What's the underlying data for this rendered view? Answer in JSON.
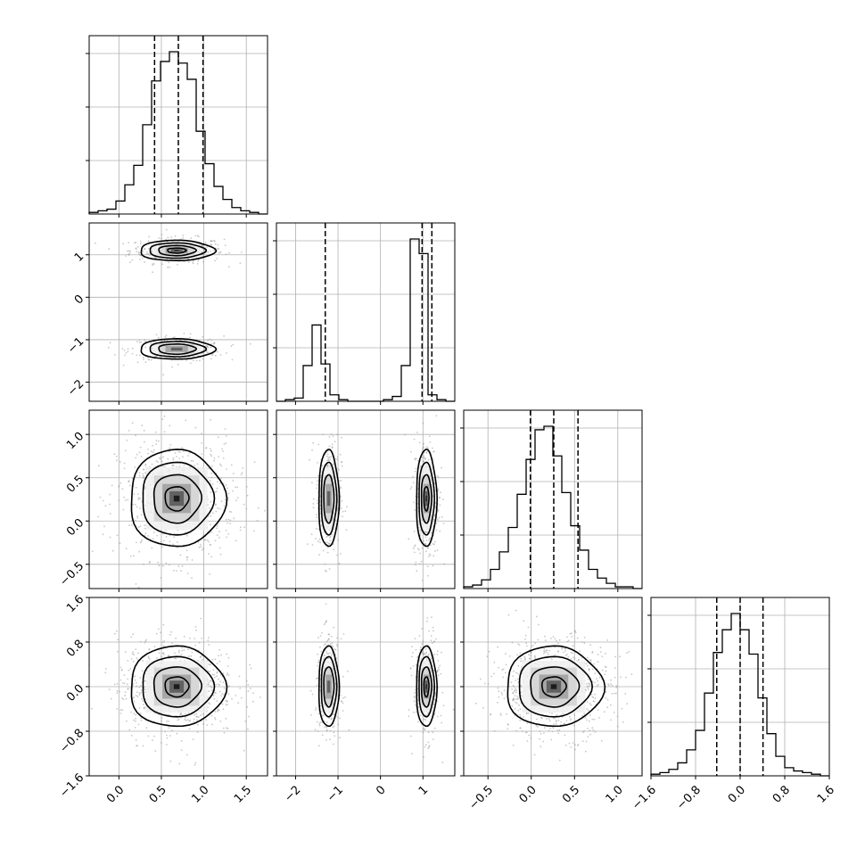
{
  "chart_data": {
    "type": "corner",
    "grid": true,
    "parameters": [
      {
        "range": [
          -0.35,
          1.75
        ],
        "ticks": [
          0.0,
          0.5,
          1.0,
          1.5
        ],
        "tick_labels": [
          "0.0",
          "0.5",
          "1.0",
          "1.5"
        ],
        "quantiles": [
          0.42,
          0.7,
          0.99
        ],
        "hist": {
          "edges_start": -0.35,
          "bin_width": 0.105,
          "counts": [
            1,
            2,
            3,
            8,
            18,
            30,
            55,
            82,
            94,
            100,
            93,
            83,
            51,
            31,
            17,
            9,
            4,
            2,
            1,
            0
          ]
        }
      },
      {
        "range": [
          -2.45,
          1.75
        ],
        "ticks": [
          -2,
          -1,
          0,
          1
        ],
        "tick_labels": [
          "−2",
          "−1",
          "0",
          "1"
        ],
        "quantiles": [
          -1.3,
          0.98,
          1.21
        ],
        "hist": {
          "edges_start": -2.45,
          "bin_width": 0.21,
          "counts": [
            0,
            1,
            2,
            22,
            47,
            23,
            4,
            1,
            0,
            0,
            0,
            0,
            1,
            3,
            22,
            100,
            91,
            4,
            1,
            0
          ]
        }
      },
      {
        "range": [
          -0.78,
          1.28
        ],
        "ticks": [
          -0.5,
          0.0,
          0.5,
          1.0
        ],
        "tick_labels": [
          "−0.5",
          "0.0",
          "0.5",
          "1.0"
        ],
        "quantiles": [
          -0.01,
          0.26,
          0.54
        ],
        "hist": {
          "edges_start": -0.78,
          "bin_width": 0.103,
          "counts": [
            1,
            2,
            5,
            11,
            21,
            35,
            54,
            74,
            91,
            93,
            76,
            55,
            36,
            22,
            11,
            6,
            3,
            1,
            1,
            0
          ]
        }
      },
      {
        "range": [
          -1.6,
          1.6
        ],
        "ticks": [
          -1.6,
          -0.8,
          0.0,
          0.8,
          1.6
        ],
        "tick_labels": [
          "−1.6",
          "−0.8",
          "0.0",
          "0.8",
          "1.6"
        ],
        "quantiles": [
          -0.42,
          0.0,
          0.41
        ],
        "hist": {
          "edges_start": -1.6,
          "bin_width": 0.16,
          "counts": [
            1,
            2,
            4,
            8,
            16,
            28,
            51,
            76,
            90,
            100,
            90,
            75,
            48,
            26,
            12,
            5,
            3,
            2,
            1,
            0
          ]
        }
      }
    ],
    "pairs": [
      {
        "row": 1,
        "col": 0,
        "components": [
          {
            "cx": 0.68,
            "cy": 1.1,
            "sx": 0.22,
            "sy": 0.12,
            "w": 0.55
          },
          {
            "cx": 0.68,
            "cy": -1.22,
            "sx": 0.22,
            "sy": 0.12,
            "w": 0.45
          }
        ]
      },
      {
        "row": 2,
        "col": 0,
        "components": [
          {
            "cx": 0.68,
            "cy": 0.26,
            "sx": 0.28,
            "sy": 0.28,
            "w": 1.0
          }
        ]
      },
      {
        "row": 2,
        "col": 1,
        "components": [
          {
            "cx": -1.22,
            "cy": 0.26,
            "sx": 0.12,
            "sy": 0.28,
            "w": 0.45
          },
          {
            "cx": 1.08,
            "cy": 0.26,
            "sx": 0.12,
            "sy": 0.28,
            "w": 0.55
          }
        ]
      },
      {
        "row": 3,
        "col": 0,
        "components": [
          {
            "cx": 0.68,
            "cy": 0.0,
            "sx": 0.28,
            "sy": 0.36,
            "w": 1.0
          }
        ]
      },
      {
        "row": 3,
        "col": 1,
        "components": [
          {
            "cx": -1.22,
            "cy": 0.0,
            "sx": 0.12,
            "sy": 0.36,
            "w": 0.45
          },
          {
            "cx": 1.08,
            "cy": 0.0,
            "sx": 0.12,
            "sy": 0.36,
            "w": 0.55
          }
        ]
      },
      {
        "row": 3,
        "col": 2,
        "components": [
          {
            "cx": 0.26,
            "cy": 0.0,
            "sx": 0.28,
            "sy": 0.36,
            "w": 1.0
          }
        ]
      }
    ],
    "contour_levels_sigma": [
      0.5,
      1.0,
      1.5,
      2.0
    ],
    "colors": {
      "line": "#000000",
      "grid": "#b0b0b0",
      "scatter": "#9a9a9a"
    }
  }
}
